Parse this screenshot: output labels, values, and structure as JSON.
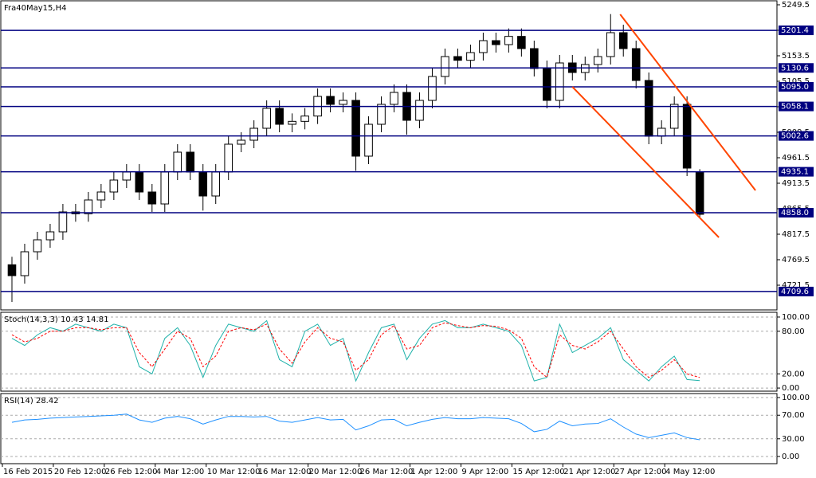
{
  "chart_data": [
    {
      "type": "candlestick",
      "title": "Fra40May15,H4",
      "open": [
        4760,
        4739.5,
        4784.5,
        4807,
        4822,
        4859.5,
        4856,
        4882,
        4897,
        4919.5,
        4934.5,
        4897,
        4874.5,
        4934.5,
        4972,
        4934.5,
        4889.5,
        4934.5,
        4987,
        4994.5,
        5017,
        5054.5,
        5024.5,
        5030,
        5040,
        5077,
        5062,
        5069.5,
        4964.5,
        5024.5,
        5062,
        5084.5,
        5032,
        5069.5,
        5114.5,
        5152,
        5145,
        5159.5,
        5182,
        5174.5,
        5190,
        5167,
        5129.5,
        5069.5,
        5140,
        5122,
        5137,
        5152,
        5197,
        5167,
        5107,
        5002,
        5017,
        5062,
        4935
      ],
      "high": [
        4775,
        4799.5,
        4822,
        4837,
        4874.5,
        4874.5,
        4897,
        4912,
        4934.5,
        4949.5,
        4949.5,
        4912,
        4949.5,
        4987,
        4987,
        4949.5,
        4949.5,
        5002,
        5009.5,
        5032,
        5069.5,
        5069.5,
        5045,
        5055,
        5092,
        5092,
        5084.5,
        5084.5,
        5039.5,
        5077,
        5099.5,
        5099.5,
        5084.5,
        5129.5,
        5167,
        5167,
        5174.5,
        5197,
        5197,
        5205,
        5205,
        5182,
        5144.5,
        5155,
        5155,
        5152,
        5167,
        5232,
        5212,
        5182,
        5122,
        5032,
        5077,
        5077,
        4940
      ],
      "low": [
        4690,
        4724.5,
        4769.5,
        4792,
        4807,
        4841,
        4841,
        4867,
        4882,
        4904.5,
        4882,
        4859.5,
        4859.5,
        4919.5,
        4919.5,
        4862,
        4874.5,
        4919.5,
        4972,
        4979.5,
        5002,
        5009.5,
        5009.5,
        5015,
        5025,
        5047,
        5047,
        4937,
        4949.5,
        5009.5,
        5047,
        5005,
        5017,
        5054.5,
        5099.5,
        5130,
        5130,
        5144.5,
        5159.5,
        5159.5,
        5152,
        5114.5,
        5054.5,
        5054.5,
        5107,
        5107,
        5122,
        5137,
        5152,
        5092,
        4987,
        4987,
        5002,
        4927,
        4850
      ],
      "close": [
        4739.5,
        4784.5,
        4807,
        4822,
        4859.5,
        4856,
        4882,
        4897,
        4919.5,
        4934.5,
        4897,
        4874.5,
        4934.5,
        4972,
        4934.5,
        4889.5,
        4934.5,
        4987,
        4994.5,
        5017,
        5054.5,
        5024.5,
        5030,
        5040,
        5077,
        5062,
        5069.5,
        4964.5,
        5024.5,
        5062,
        5084.5,
        5032,
        5069.5,
        5114.5,
        5152,
        5145,
        5159.5,
        5182,
        5174.5,
        5190,
        5167,
        5129.5,
        5069.5,
        5140,
        5122,
        5137,
        5152,
        5197,
        5167,
        5107,
        5002,
        5017,
        5062,
        4942,
        4855
      ],
      "colors": {
        "up": "#ffffff",
        "down": "#000000",
        "outline": "#000000"
      },
      "xlim": [
        -0.875,
        60.06
      ],
      "ylim": [
        4675,
        5257
      ],
      "yticks": [
        5249.5,
        5201.5,
        5153.5,
        5105.5,
        5057.5,
        5009.5,
        4961.5,
        4913.5,
        4865.5,
        4817.5,
        4769.5,
        4721.5
      ],
      "grid": false,
      "level_color": "#000080",
      "levels": [
        5201.4,
        5130.6,
        {
          "value": 5095.0,
          "label": "5095.0"
        },
        5058.1,
        5002.6,
        4935.1,
        {
          "value": 4858.0,
          "label": "4858.0"
        },
        4709.6
      ],
      "trendline_color": "#ff4500",
      "trendlines": [
        {
          "x": [
            47.75,
            58.375
          ],
          "y": [
            5231.5,
            4900
          ]
        },
        {
          "x": [
            44,
            55.5
          ],
          "y": [
            5095,
            4811.5
          ]
        }
      ]
    },
    {
      "type": "line",
      "title": "Stoch(14,3,3) 10.43 14.81",
      "xlim": [
        -0.875,
        60.06
      ],
      "ylim": [
        -4.4,
        106.7
      ],
      "yticks": [
        {
          "value": 100,
          "label": "100.00"
        },
        {
          "value": 80,
          "label": "80.00"
        },
        {
          "value": 20,
          "label": "20.00"
        },
        {
          "value": 0,
          "label": "0.00"
        }
      ],
      "grid": true,
      "series": [
        {
          "color": "#20b2aa",
          "dash": false,
          "values": [
            70,
            60,
            75,
            85,
            80,
            90,
            85,
            80,
            90,
            85,
            30,
            20,
            70,
            85,
            60,
            15,
            60,
            90,
            85,
            80,
            95,
            40,
            30,
            80,
            90,
            60,
            70,
            10,
            50,
            85,
            90,
            40,
            70,
            90,
            95,
            85,
            85,
            90,
            85,
            80,
            60,
            10,
            15,
            90,
            50,
            60,
            70,
            85,
            40,
            25,
            10,
            30,
            45,
            12,
            10.43
          ]
        },
        {
          "color": "#ff0000",
          "dash": true,
          "values": [
            75,
            65,
            70,
            80,
            80,
            85,
            85,
            82,
            85,
            85,
            50,
            30,
            55,
            80,
            70,
            30,
            45,
            80,
            85,
            82,
            90,
            55,
            35,
            65,
            85,
            70,
            65,
            25,
            40,
            75,
            88,
            55,
            60,
            85,
            92,
            88,
            85,
            88,
            87,
            82,
            70,
            30,
            15,
            75,
            60,
            55,
            65,
            80,
            55,
            30,
            15,
            25,
            40,
            20,
            14.81
          ]
        }
      ]
    },
    {
      "type": "line",
      "title": "RSI(14) 28.42",
      "xlim": [
        -0.875,
        60.06
      ],
      "ylim": [
        -12.2,
        106.8
      ],
      "yticks": [
        {
          "value": 100,
          "label": "100.00"
        },
        {
          "value": 70,
          "label": "70.00"
        },
        {
          "value": 30,
          "label": "30.00"
        },
        {
          "value": 0,
          "label": "0.00"
        }
      ],
      "grid": true,
      "series": [
        {
          "color": "#1e90ff",
          "dash": false,
          "values": [
            58,
            62,
            63,
            65,
            66,
            67,
            68,
            69,
            70,
            72,
            62,
            58,
            65,
            68,
            64,
            55,
            62,
            68,
            68,
            67,
            68,
            60,
            58,
            62,
            66,
            62,
            63,
            45,
            52,
            62,
            63,
            52,
            58,
            63,
            66,
            64,
            64,
            66,
            65,
            64,
            56,
            42,
            46,
            60,
            52,
            55,
            56,
            64,
            50,
            38,
            32,
            36,
            40,
            32,
            28.42
          ]
        }
      ],
      "xticks": [
        {
          "value": -0.75,
          "label": "16 Feb 2015"
        },
        {
          "value": 3.25,
          "label": "20 Feb 12:00"
        },
        {
          "value": 7.25,
          "label": "26 Feb 12:00"
        },
        {
          "value": 11.25,
          "label": "4 Mar 12:00"
        },
        {
          "value": 15.25,
          "label": "10 Mar 12:00"
        },
        {
          "value": 19.25,
          "label": "16 Mar 12:00"
        },
        {
          "value": 23.25,
          "label": "20 Mar 12:00"
        },
        {
          "value": 27.25,
          "label": "26 Mar 12:00"
        },
        {
          "value": 31.25,
          "label": "1 Apr 12:00"
        },
        {
          "value": 35.25,
          "label": "9 Apr 12:00"
        },
        {
          "value": 39.25,
          "label": "15 Apr 12:00"
        },
        {
          "value": 43.25,
          "label": "21 Apr 12:00"
        },
        {
          "value": 47.25,
          "label": "27 Apr 12:00"
        },
        {
          "value": 51.25,
          "label": "4 May 12:00"
        }
      ]
    }
  ]
}
